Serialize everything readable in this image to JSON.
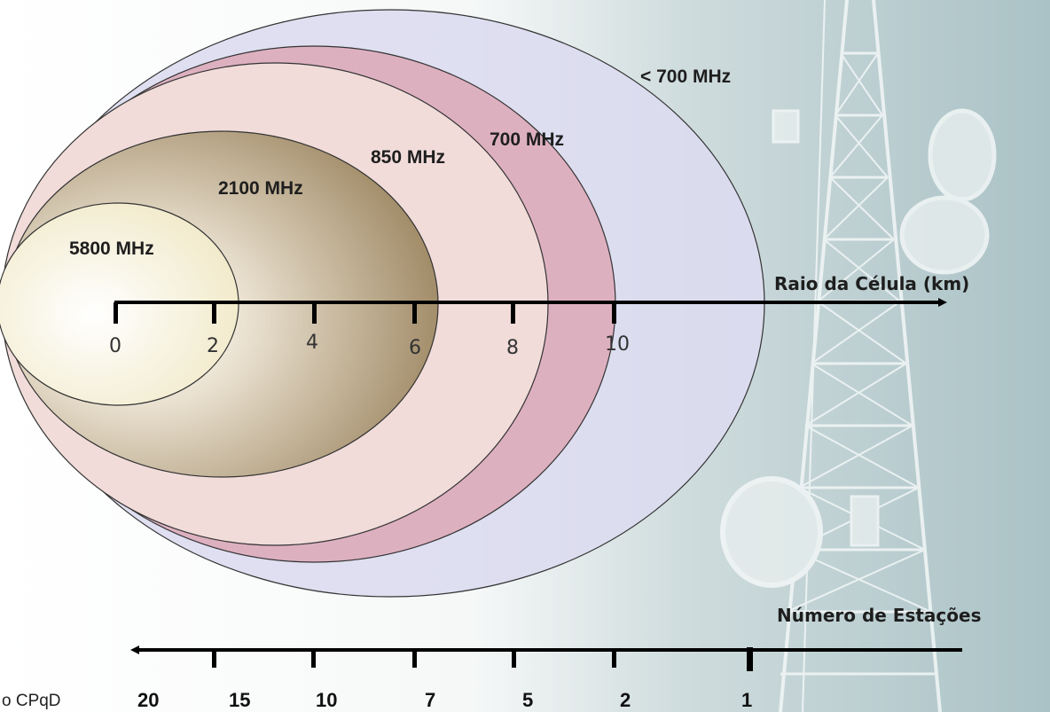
{
  "frequency_bands": [
    {
      "label": "< 700 MHz",
      "fill": "#dcdcf0"
    },
    {
      "label": "700 MHz",
      "fill": "#ddb0c0"
    },
    {
      "label": "850 MHz",
      "fill": "#f1dcda"
    },
    {
      "label": "2100 MHz",
      "fill": "#b09a78"
    },
    {
      "label": "5800 MHz",
      "fill": "#fbf5e0"
    }
  ],
  "radius_axis": {
    "title": "Raio da Célula (km)",
    "ticks": [
      "0",
      "2",
      "4",
      "6",
      "8",
      "10"
    ]
  },
  "stations_axis": {
    "title": "Número de Estações",
    "ticks": [
      "20",
      "15",
      "10",
      "7",
      "5",
      "2",
      "1"
    ]
  },
  "source_text": "o CPqD",
  "background_image": "telecom-tower",
  "colors": {
    "tower_background": "#b9ced1",
    "axis": "#000000"
  }
}
